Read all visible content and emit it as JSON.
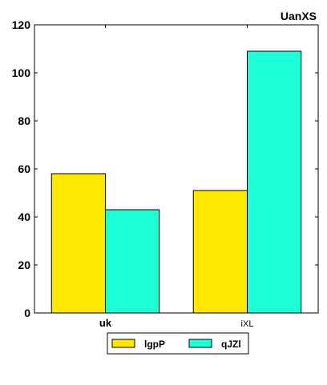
{
  "chart_data": {
    "type": "bar",
    "title": "UanXS",
    "xlabel": "",
    "ylabel": "",
    "categories": [
      "uk",
      "iXL"
    ],
    "series": [
      {
        "name": "lgpP",
        "values": [
          58,
          51
        ],
        "color": "#ffe800"
      },
      {
        "name": "qJZl",
        "values": [
          43,
          109
        ],
        "color": "#1effd8"
      }
    ],
    "ylim": [
      0,
      120
    ],
    "yticks": [
      0,
      20,
      40,
      60,
      80,
      100,
      120
    ],
    "grid": false,
    "legend_position": "bottom-center"
  }
}
